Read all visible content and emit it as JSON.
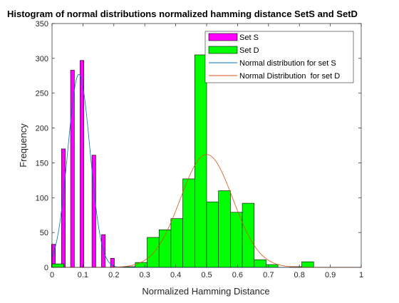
{
  "chart_data": {
    "type": "bar",
    "title": "Histogram of normal distributions normalized hamming distance SetS and SetD",
    "xlabel": "Normalized Hamming Distance",
    "ylabel": "Frequency",
    "xlim": [
      0,
      1
    ],
    "ylim": [
      0,
      350
    ],
    "xticks": [
      0,
      0.1,
      0.2,
      0.3,
      0.4,
      0.5,
      0.6,
      0.7,
      0.8,
      0.9,
      1
    ],
    "xtick_labels": [
      "0",
      "0.1",
      "0.2",
      "0.3",
      "0.4",
      "0.5",
      "0.6",
      "0.7",
      "0.8",
      "0.9",
      "1"
    ],
    "yticks": [
      0,
      50,
      100,
      150,
      200,
      250,
      300,
      350
    ],
    "ytick_labels": [
      "0",
      "50",
      "100",
      "150",
      "200",
      "250",
      "300",
      "350"
    ],
    "grid": false,
    "legend_position": "top-right",
    "series": [
      {
        "name": "Set S",
        "kind": "histogram",
        "color": "#ff00ff",
        "bin_width": 0.0123,
        "bins": [
          {
            "center": 0.0046,
            "value": 33
          },
          {
            "center": 0.0369,
            "value": 170
          },
          {
            "center": 0.0662,
            "value": 283
          },
          {
            "center": 0.0969,
            "value": 297
          },
          {
            "center": 0.1354,
            "value": 161
          },
          {
            "center": 0.1662,
            "value": 47
          },
          {
            "center": 0.1954,
            "value": 13
          }
        ]
      },
      {
        "name": "Set D",
        "kind": "histogram",
        "color": "#00ff00",
        "bin_width": 0.0385,
        "bins": [
          {
            "center": 0.0192,
            "value": 5
          },
          {
            "center": 0.2115,
            "value": 0
          },
          {
            "center": 0.25,
            "value": 1
          },
          {
            "center": 0.2885,
            "value": 7
          },
          {
            "center": 0.3269,
            "value": 43
          },
          {
            "center": 0.3654,
            "value": 54
          },
          {
            "center": 0.4038,
            "value": 70
          },
          {
            "center": 0.4423,
            "value": 127
          },
          {
            "center": 0.4808,
            "value": 305
          },
          {
            "center": 0.5192,
            "value": 94
          },
          {
            "center": 0.5577,
            "value": 110
          },
          {
            "center": 0.5962,
            "value": 79
          },
          {
            "center": 0.6346,
            "value": 92
          },
          {
            "center": 0.6731,
            "value": 11
          },
          {
            "center": 0.7115,
            "value": 4
          },
          {
            "center": 0.75,
            "value": 0
          },
          {
            "center": 0.7885,
            "value": 1
          },
          {
            "center": 0.8269,
            "value": 8
          }
        ]
      },
      {
        "name": "Normal distribution for set S",
        "kind": "normal_curve",
        "color": "#0072bd",
        "mean": 0.087,
        "sigma": 0.036,
        "peak": 277
      },
      {
        "name": "Normal Distribution  for set D",
        "kind": "normal_curve",
        "color": "#d95319",
        "mean": 0.5,
        "sigma": 0.085,
        "peak": 162
      }
    ]
  }
}
